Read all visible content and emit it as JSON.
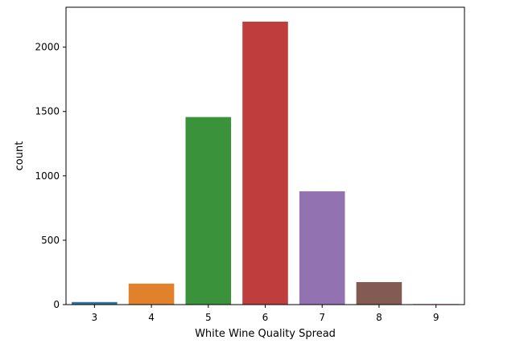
{
  "chart_data": {
    "type": "bar",
    "categories": [
      "3",
      "4",
      "5",
      "6",
      "7",
      "8",
      "9"
    ],
    "values": [
      20,
      163,
      1457,
      2198,
      880,
      175,
      5
    ],
    "colors": [
      "#3274a1",
      "#e1812c",
      "#3a923a",
      "#c03d3e",
      "#9372b2",
      "#845b53",
      "#d684bd"
    ],
    "xlabel": "White Wine Quality Spread",
    "ylabel": "count",
    "ylim": [
      0,
      2310
    ],
    "yticks": [
      0,
      500,
      1000,
      1500,
      2000
    ],
    "grid": false,
    "legend": "none"
  }
}
